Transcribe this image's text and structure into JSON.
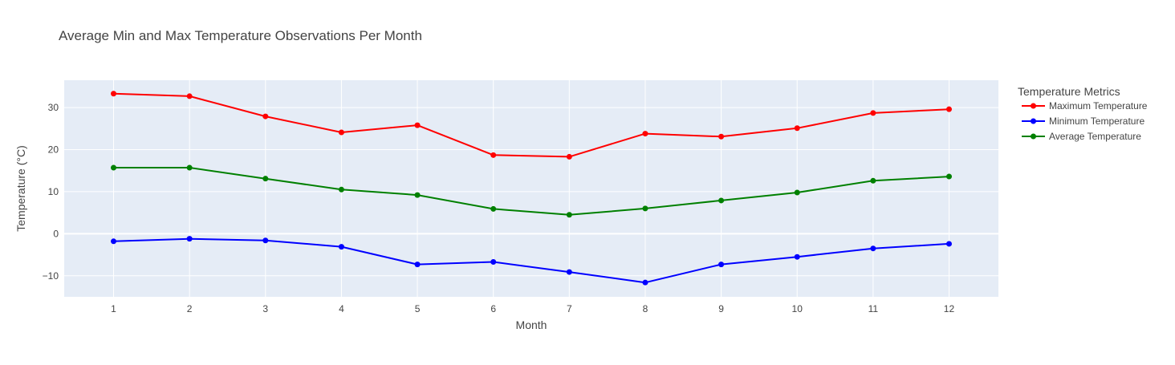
{
  "chart_data": {
    "type": "line",
    "title": "Average Min and Max Temperature Observations Per Month",
    "xlabel": "Month",
    "ylabel": "Temperature (°C)",
    "x": [
      1,
      2,
      3,
      4,
      5,
      6,
      7,
      8,
      9,
      10,
      11,
      12
    ],
    "xlim": [
      0.35,
      12.65
    ],
    "ylim": [
      -15,
      36.5
    ],
    "yticks": [
      -10,
      0,
      10,
      20,
      30
    ],
    "grid": true,
    "legend": {
      "title": "Temperature Metrics",
      "placement": "right"
    },
    "series": [
      {
        "name": "Maximum Temperature",
        "color": "#ff0000",
        "values": [
          33.3,
          32.7,
          27.9,
          24.1,
          25.8,
          18.7,
          18.3,
          23.8,
          23.1,
          25.1,
          28.7,
          29.6
        ]
      },
      {
        "name": "Minimum Temperature",
        "color": "#0000ff",
        "values": [
          -1.8,
          -1.2,
          -1.6,
          -3.1,
          -7.3,
          -6.7,
          -9.1,
          -11.6,
          -7.3,
          -5.5,
          -3.5,
          -2.4
        ]
      },
      {
        "name": "Average Temperature",
        "color": "#008000",
        "values": [
          15.7,
          15.7,
          13.1,
          10.5,
          9.2,
          5.9,
          4.5,
          6.0,
          7.9,
          9.8,
          12.6,
          13.6
        ]
      }
    ]
  }
}
